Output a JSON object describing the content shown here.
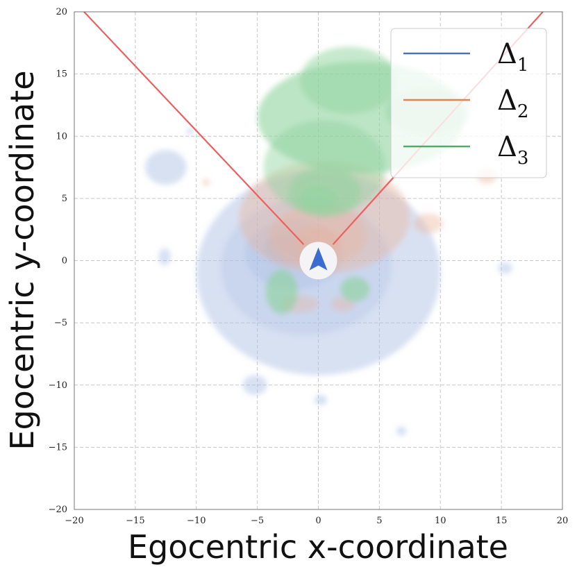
{
  "chart_data": {
    "type": "heatmap",
    "subtype": "kde-contour",
    "title": "",
    "xlabel": "Egocentric x-coordinate",
    "ylabel": "Egocentric y-coordinate",
    "xlim": [
      -20,
      20
    ],
    "ylim": [
      -20,
      20
    ],
    "xticks": [
      -20,
      -15,
      -10,
      -5,
      0,
      5,
      10,
      15,
      20
    ],
    "yticks": [
      -20,
      -15,
      -10,
      -5,
      0,
      5,
      10,
      15,
      20
    ],
    "grid": true,
    "legend_position": "top-right",
    "series": [
      {
        "name": "Δ1",
        "color": "#4c72b0",
        "fill": "#a8bde3",
        "blobs": [
          {
            "cx": 0.0,
            "cy": -1.0,
            "rx": 10.0,
            "ry": 8.2,
            "opacity": 0.45
          },
          {
            "cx": -1.0,
            "cy": -0.5,
            "rx": 7.0,
            "ry": 5.5,
            "opacity": 0.3
          },
          {
            "cx": -2.0,
            "cy": 0.5,
            "rx": 4.0,
            "ry": 2.8,
            "opacity": 0.35
          },
          {
            "cx": -2.5,
            "cy": 1.0,
            "rx": 2.0,
            "ry": 1.3,
            "opacity": 0.45
          },
          {
            "cx": -12.5,
            "cy": 7.5,
            "rx": 1.7,
            "ry": 1.4,
            "opacity": 0.45
          },
          {
            "cx": -10.5,
            "cy": 10.4,
            "rx": 0.3,
            "ry": 0.25,
            "opacity": 0.5
          },
          {
            "cx": -12.6,
            "cy": 0.3,
            "rx": 0.5,
            "ry": 0.7,
            "opacity": 0.45
          },
          {
            "cx": -5.2,
            "cy": -10.0,
            "rx": 1.0,
            "ry": 0.8,
            "opacity": 0.45
          },
          {
            "cx": 0.2,
            "cy": -11.2,
            "rx": 0.5,
            "ry": 0.4,
            "opacity": 0.5
          },
          {
            "cx": 6.8,
            "cy": -13.7,
            "rx": 0.4,
            "ry": 0.35,
            "opacity": 0.5
          },
          {
            "cx": 15.3,
            "cy": -0.6,
            "rx": 0.6,
            "ry": 0.45,
            "opacity": 0.45
          }
        ]
      },
      {
        "name": "Δ2",
        "color": "#dd8452",
        "fill": "#ecb297",
        "blobs": [
          {
            "cx": 0.5,
            "cy": 3.5,
            "rx": 7.0,
            "ry": 4.5,
            "opacity": 0.4
          },
          {
            "cx": 0.0,
            "cy": 2.0,
            "rx": 4.0,
            "ry": 2.5,
            "opacity": 0.35
          },
          {
            "cx": 0.0,
            "cy": 1.5,
            "rx": 2.0,
            "ry": 1.2,
            "opacity": 0.35
          },
          {
            "cx": 9.0,
            "cy": 3.0,
            "rx": 1.2,
            "ry": 0.8,
            "opacity": 0.4
          },
          {
            "cx": 13.8,
            "cy": 6.8,
            "rx": 0.8,
            "ry": 0.6,
            "opacity": 0.45
          },
          {
            "cx": -9.2,
            "cy": 6.3,
            "rx": 0.3,
            "ry": 0.25,
            "opacity": 0.5
          },
          {
            "cx": -1.5,
            "cy": -3.5,
            "rx": 1.5,
            "ry": 0.7,
            "opacity": 0.35
          },
          {
            "cx": 2.0,
            "cy": -3.5,
            "rx": 1.0,
            "ry": 0.6,
            "opacity": 0.35
          }
        ]
      },
      {
        "name": "Δ3",
        "color": "#55a868",
        "fill": "#8fd39e",
        "blobs": [
          {
            "cx": 3.5,
            "cy": 11.5,
            "rx": 8.5,
            "ry": 4.5,
            "opacity": 0.6
          },
          {
            "cx": 2.5,
            "cy": 14.5,
            "rx": 4.0,
            "ry": 2.7,
            "opacity": 0.5
          },
          {
            "cx": 0.5,
            "cy": 7.5,
            "rx": 5.0,
            "ry": 3.8,
            "opacity": 0.45
          },
          {
            "cx": 0.5,
            "cy": 5.5,
            "rx": 3.0,
            "ry": 2.0,
            "opacity": 0.5
          },
          {
            "cx": 0.0,
            "cy": 5.0,
            "rx": 1.5,
            "ry": 1.0,
            "opacity": 0.55
          },
          {
            "cx": -3.0,
            "cy": -2.5,
            "rx": 1.3,
            "ry": 1.8,
            "opacity": 0.65
          },
          {
            "cx": 3.0,
            "cy": -2.3,
            "rx": 1.2,
            "ry": 1.0,
            "opacity": 0.65
          },
          {
            "cx": 9.0,
            "cy": 12.0,
            "rx": 3.5,
            "ry": 2.0,
            "opacity": 0.4
          }
        ]
      }
    ],
    "view_cone": {
      "color": "#ec5f5f",
      "lines": [
        {
          "from": [
            -1.2,
            1.3
          ],
          "to": [
            -19.2,
            20
          ]
        },
        {
          "from": [
            1.2,
            1.3
          ],
          "to": [
            18.4,
            20
          ]
        }
      ]
    },
    "agent_marker": {
      "x": 0,
      "y": 0,
      "icon": "navigation-arrow-icon",
      "color": "#3c6cd0"
    }
  },
  "legend": {
    "items": [
      {
        "symbol": "Δ",
        "sub": "1",
        "color": "#4c72b0"
      },
      {
        "symbol": "Δ",
        "sub": "2",
        "color": "#dd8452"
      },
      {
        "symbol": "Δ",
        "sub": "3",
        "color": "#55a868"
      }
    ]
  }
}
